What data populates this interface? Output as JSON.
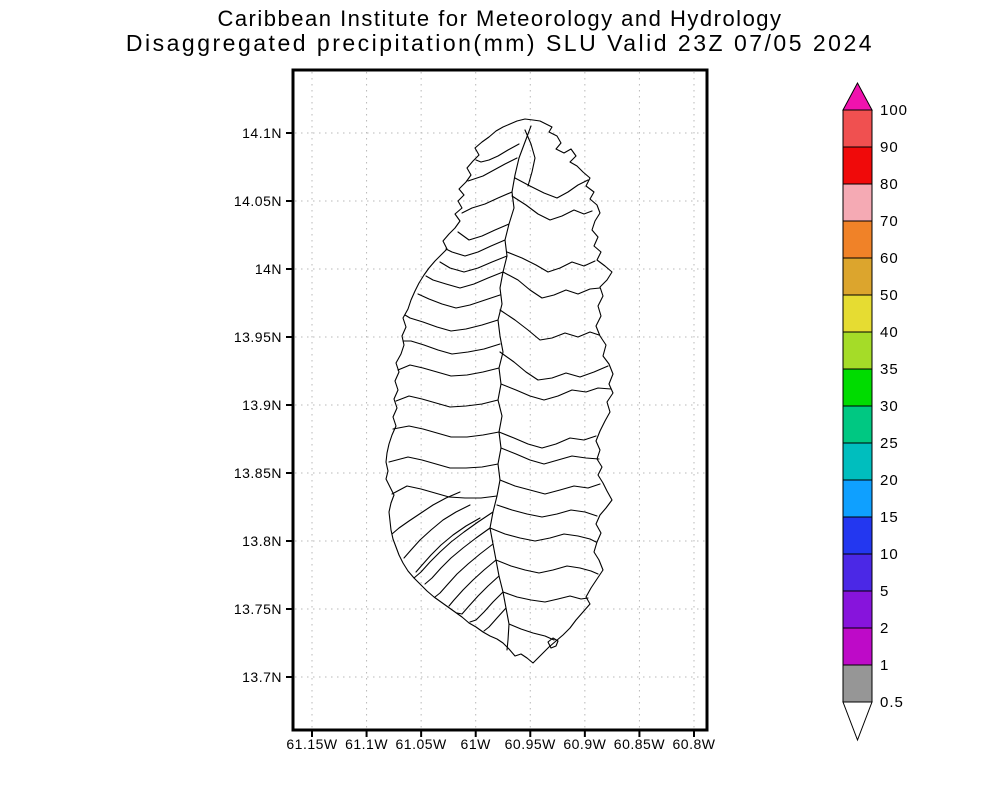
{
  "title": {
    "line1": "Caribbean Institute for Meteorology and Hydrology",
    "line2": "Disaggregated precipitation(mm) SLU Valid 23Z 07/05 2024"
  },
  "axes": {
    "lat_labels": [
      "14.1N",
      "14.05N",
      "14N",
      "13.95N",
      "13.9N",
      "13.85N",
      "13.8N",
      "13.75N",
      "13.7N"
    ],
    "lon_labels": [
      "61.15W",
      "61.1W",
      "61.05W",
      "61W",
      "60.95W",
      "60.9W",
      "60.85W",
      "60.8W"
    ]
  },
  "colorbar": {
    "boundary_labels": [
      "100",
      "90",
      "80",
      "70",
      "60",
      "50",
      "40",
      "35",
      "30",
      "25",
      "20",
      "15",
      "10",
      "5",
      "2",
      "1",
      "0.5"
    ],
    "segment_colors_top_to_bottom": [
      "#F05050",
      "#F00A0A",
      "#F5AAB4",
      "#F08228",
      "#DCA52D",
      "#E6DC32",
      "#A5DC28",
      "#00DC00",
      "#00C882",
      "#00BEBE",
      "#0FA0FF",
      "#2337F0",
      "#4B28E6",
      "#8714DC",
      "#BE0AC8",
      "#969696"
    ],
    "arrow_top_color": "#F012AE",
    "arrow_bottom_color": "#FFFFFF"
  },
  "colors": {
    "grid": "#B8B8B8",
    "frame": "#000000",
    "coastline": "#000000",
    "background": "#FFFFFF"
  },
  "chart_data": {
    "type": "map",
    "title": "Disaggregated precipitation(mm) SLU Valid 23Z 07/05 2024",
    "subtitle": "Caribbean Institute for Meteorology and Hydrology",
    "region_code": "SLU",
    "valid_time": "23Z 07/05 2024",
    "units": "mm",
    "lat_tick_values": [
      14.1,
      14.05,
      14.0,
      13.95,
      13.9,
      13.85,
      13.8,
      13.75,
      13.7
    ],
    "lon_tick_values": [
      -61.15,
      -61.1,
      -61.05,
      -61.0,
      -60.95,
      -60.9,
      -60.85,
      -60.8
    ],
    "colorbar_levels": [
      0.5,
      1,
      2,
      5,
      10,
      15,
      20,
      25,
      30,
      35,
      40,
      50,
      60,
      70,
      80,
      90,
      100
    ],
    "shaded_precipitation": "none visible (island interior unshaded, below 0.5 mm)"
  }
}
